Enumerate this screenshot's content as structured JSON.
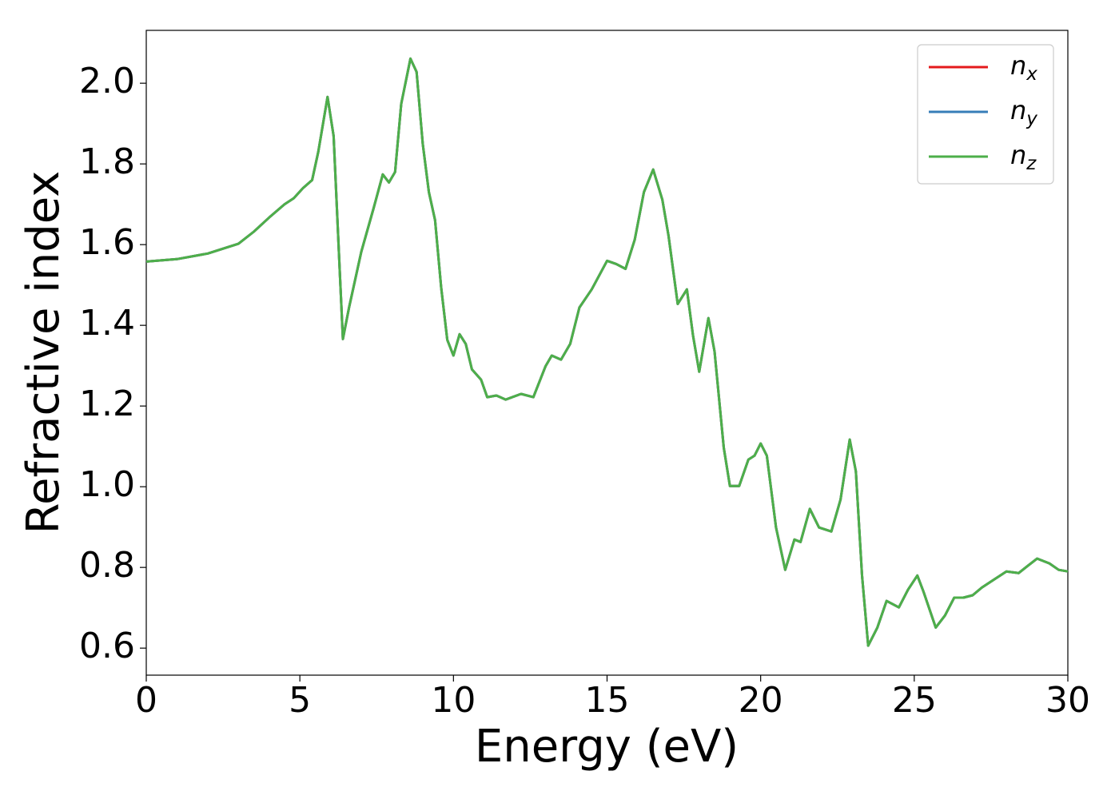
{
  "chart_data": {
    "type": "line",
    "xlabel": "Energy (eV)",
    "ylabel": "Refractive index",
    "xlim": [
      0,
      30
    ],
    "xticks": [
      0,
      5,
      10,
      15,
      20,
      25,
      30
    ],
    "ylim": [
      0.533,
      2.131
    ],
    "yticks": [
      0.6,
      0.8,
      {
        "value": 1.0,
        "label": "1.0"
      },
      1.2,
      1.4,
      1.6,
      1.8,
      {
        "value": 2.0,
        "label": "2.0"
      }
    ],
    "legend": "upper right",
    "x": [
      0,
      1,
      2,
      2.5,
      3,
      3.5,
      4,
      4.5,
      4.8,
      5.1,
      5.4,
      5.6,
      5.9,
      6.1,
      6.3,
      6.4,
      6.6,
      7.0,
      7.4,
      7.7,
      7.9,
      8.1,
      8.3,
      8.6,
      8.8,
      9.0,
      9.2,
      9.4,
      9.6,
      9.8,
      10.0,
      10.2,
      10.4,
      10.6,
      10.9,
      11.1,
      11.4,
      11.7,
      12.2,
      12.6,
      13.0,
      13.2,
      13.5,
      13.8,
      14.1,
      14.5,
      15.0,
      15.3,
      15.6,
      15.9,
      16.2,
      16.5,
      16.8,
      17.0,
      17.3,
      17.6,
      17.8,
      18.0,
      18.3,
      18.5,
      18.8,
      19.0,
      19.3,
      19.6,
      19.8,
      20.0,
      20.2,
      20.5,
      20.8,
      21.1,
      21.3,
      21.6,
      21.9,
      22.3,
      22.6,
      22.9,
      23.1,
      23.3,
      23.5,
      23.8,
      24.1,
      24.5,
      24.8,
      25.1,
      25.3,
      25.7,
      26.0,
      26.3,
      26.6,
      26.9,
      27.2,
      27.6,
      28.0,
      28.4,
      28.7,
      29.0,
      29.4,
      29.7,
      30.0
    ],
    "series": [
      {
        "name": "nx",
        "color": "#e41a1c",
        "values": [
          1.558,
          1.564,
          1.578,
          1.59,
          1.602,
          1.632,
          1.667,
          1.7,
          1.715,
          1.74,
          1.76,
          1.83,
          1.966,
          1.869,
          1.533,
          1.366,
          1.444,
          1.582,
          1.69,
          1.774,
          1.754,
          1.78,
          1.949,
          2.061,
          2.028,
          1.85,
          1.73,
          1.661,
          1.493,
          1.364,
          1.325,
          1.378,
          1.354,
          1.291,
          1.265,
          1.222,
          1.226,
          1.216,
          1.23,
          1.222,
          1.299,
          1.325,
          1.315,
          1.354,
          1.444,
          1.489,
          1.56,
          1.552,
          1.54,
          1.612,
          1.73,
          1.786,
          1.711,
          1.622,
          1.453,
          1.489,
          1.374,
          1.285,
          1.418,
          1.335,
          1.097,
          1.002,
          1.002,
          1.067,
          1.077,
          1.107,
          1.077,
          0.899,
          0.794,
          0.869,
          0.863,
          0.945,
          0.899,
          0.889,
          0.968,
          1.117,
          1.038,
          0.78,
          0.606,
          0.651,
          0.717,
          0.701,
          0.745,
          0.78,
          0.74,
          0.651,
          0.681,
          0.725,
          0.725,
          0.731,
          0.75,
          0.77,
          0.79,
          0.786,
          0.804,
          0.822,
          0.81,
          0.794,
          0.79
        ]
      },
      {
        "name": "ny",
        "color": "#377eb8",
        "values": [
          1.558,
          1.564,
          1.578,
          1.59,
          1.602,
          1.632,
          1.667,
          1.7,
          1.715,
          1.74,
          1.76,
          1.83,
          1.966,
          1.869,
          1.533,
          1.366,
          1.444,
          1.582,
          1.69,
          1.774,
          1.754,
          1.78,
          1.949,
          2.061,
          2.028,
          1.85,
          1.73,
          1.661,
          1.493,
          1.364,
          1.325,
          1.378,
          1.354,
          1.291,
          1.265,
          1.222,
          1.226,
          1.216,
          1.23,
          1.222,
          1.299,
          1.325,
          1.315,
          1.354,
          1.444,
          1.489,
          1.56,
          1.552,
          1.54,
          1.612,
          1.73,
          1.786,
          1.711,
          1.622,
          1.453,
          1.489,
          1.374,
          1.285,
          1.418,
          1.335,
          1.097,
          1.002,
          1.002,
          1.067,
          1.077,
          1.107,
          1.077,
          0.899,
          0.794,
          0.869,
          0.863,
          0.945,
          0.899,
          0.889,
          0.968,
          1.117,
          1.038,
          0.78,
          0.606,
          0.651,
          0.717,
          0.701,
          0.745,
          0.78,
          0.74,
          0.651,
          0.681,
          0.725,
          0.725,
          0.731,
          0.75,
          0.77,
          0.79,
          0.786,
          0.804,
          0.822,
          0.81,
          0.794,
          0.79
        ]
      },
      {
        "name": "nz",
        "color": "#4daf4a",
        "values": [
          1.558,
          1.564,
          1.578,
          1.59,
          1.602,
          1.632,
          1.667,
          1.7,
          1.715,
          1.74,
          1.76,
          1.83,
          1.966,
          1.869,
          1.533,
          1.366,
          1.444,
          1.582,
          1.69,
          1.774,
          1.754,
          1.78,
          1.949,
          2.061,
          2.028,
          1.85,
          1.73,
          1.661,
          1.493,
          1.364,
          1.325,
          1.378,
          1.354,
          1.291,
          1.265,
          1.222,
          1.226,
          1.216,
          1.23,
          1.222,
          1.299,
          1.325,
          1.315,
          1.354,
          1.444,
          1.489,
          1.56,
          1.552,
          1.54,
          1.612,
          1.73,
          1.786,
          1.711,
          1.622,
          1.453,
          1.489,
          1.374,
          1.285,
          1.418,
          1.335,
          1.097,
          1.002,
          1.002,
          1.067,
          1.077,
          1.107,
          1.077,
          0.899,
          0.794,
          0.869,
          0.863,
          0.945,
          0.899,
          0.889,
          0.968,
          1.117,
          1.038,
          0.78,
          0.606,
          0.651,
          0.717,
          0.701,
          0.745,
          0.78,
          0.74,
          0.651,
          0.681,
          0.725,
          0.725,
          0.731,
          0.75,
          0.77,
          0.79,
          0.786,
          0.804,
          0.822,
          0.81,
          0.794,
          0.79
        ]
      }
    ]
  }
}
